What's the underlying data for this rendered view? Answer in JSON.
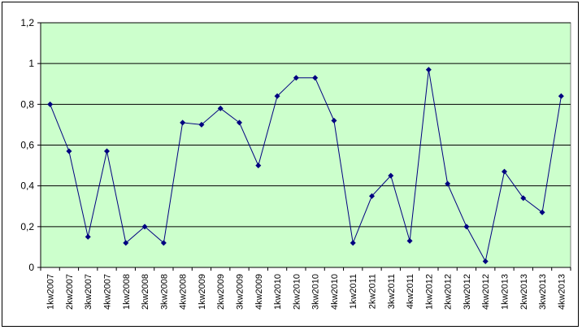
{
  "chart_data": {
    "type": "line",
    "title": "",
    "xlabel": "",
    "ylabel": "",
    "ylim": [
      0,
      1.2
    ],
    "y_ticks": [
      "0",
      "0,2",
      "0,4",
      "0,6",
      "0,8",
      "1",
      "1,2"
    ],
    "grid": "horizontal",
    "legend": "none",
    "colors": {
      "plot_background": "#ccffcc",
      "line": "#000080",
      "marker": "#000080",
      "gridline": "#000000"
    },
    "categories": [
      "1kw2007",
      "2kw2007",
      "3kw2007",
      "4kw2007",
      "1kw2008",
      "2kw2008",
      "3kw2008",
      "4kw2008",
      "1kw2009",
      "2kw2009",
      "3kw2009",
      "4kw2009",
      "1kw2010",
      "2kw2010",
      "3kw2010",
      "4kw2010",
      "1kw2011",
      "2kw2011",
      "3kw2011",
      "4kw2011",
      "1kw2012",
      "2kw2012",
      "3kw2012",
      "4kw2012",
      "1kw2013",
      "2kw2013",
      "3kw2013",
      "4kw2013"
    ],
    "series": [
      {
        "values": [
          0.8,
          0.57,
          0.15,
          0.57,
          0.12,
          0.2,
          0.12,
          0.71,
          0.7,
          0.78,
          0.71,
          0.5,
          0.84,
          0.93,
          0.93,
          0.72,
          0.12,
          0.35,
          0.45,
          0.13,
          0.97,
          0.41,
          0.2,
          0.03,
          0.47,
          0.34,
          0.27,
          0.84
        ]
      }
    ]
  }
}
